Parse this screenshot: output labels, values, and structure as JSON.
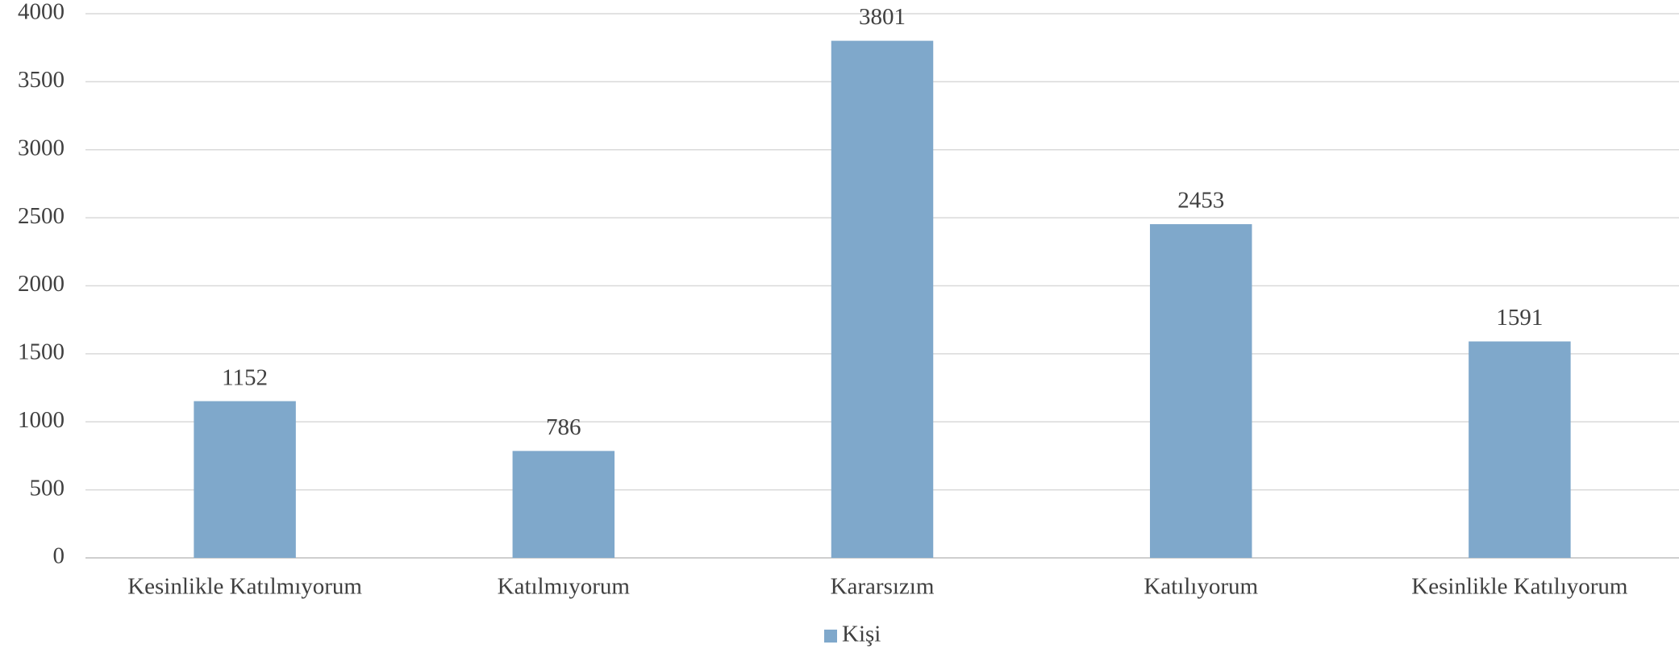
{
  "chart_data": {
    "type": "bar",
    "categories": [
      "Kesinlikle Katılmıyorum",
      "Katılmıyorum",
      "Kararsızım",
      "Katılıyorum",
      "Kesinlikle Katılıyorum"
    ],
    "series": [
      {
        "name": "Kişi",
        "color": "#7fa8cb",
        "values": [
          1152,
          786,
          3801,
          2453,
          1591
        ]
      }
    ],
    "ylim": [
      0,
      4000
    ],
    "yticks": [
      0,
      500,
      1000,
      1500,
      2000,
      2500,
      3000,
      3500,
      4000
    ],
    "grid": true,
    "legend": "bottom"
  }
}
